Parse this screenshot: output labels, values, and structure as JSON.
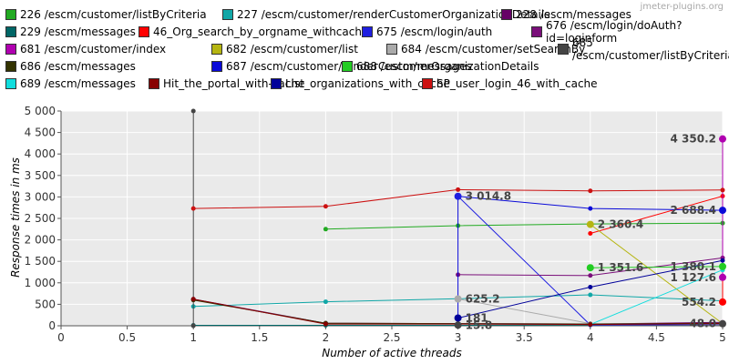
{
  "watermark": "jmeter-plugins.org",
  "chart_data": {
    "type": "line",
    "title": "",
    "xlabel": "Number of active threads",
    "ylabel": "Response times in ms",
    "xlim": [
      0,
      5
    ],
    "ylim": [
      0,
      5000
    ],
    "x_ticks": [
      "0",
      "0.5",
      "1",
      "1.5",
      "2",
      "2.5",
      "3",
      "3.5",
      "4",
      "4.5",
      "5"
    ],
    "y_ticks": [
      "0",
      "500",
      "1 000",
      "1 500",
      "2 000",
      "2 500",
      "3 000",
      "3 500",
      "4 000",
      "4 500",
      "5 000"
    ],
    "grid": true,
    "legend_position": "top",
    "series": [
      {
        "name": "226 /escm/customer/listByCriteria",
        "color": "#22aa22",
        "points": [
          [
            2,
            2250
          ],
          [
            3,
            2330
          ],
          [
            4,
            2370
          ],
          [
            5,
            2390
          ],
          [
            5,
            1300
          ]
        ]
      },
      {
        "name": "227 /escm/customer/renderCustomerOrganizationDetails",
        "color": "#11a7a7",
        "points": [
          [
            1,
            450
          ],
          [
            2,
            560
          ],
          [
            3,
            630
          ],
          [
            4,
            720
          ],
          [
            5,
            580
          ]
        ]
      },
      {
        "name": "228 /escm/messages",
        "color": "#660066",
        "points": [
          [
            1,
            620
          ],
          [
            2,
            60
          ],
          [
            3,
            50
          ],
          [
            4,
            40
          ],
          [
            5,
            80
          ]
        ]
      },
      {
        "name": "229 /escm/messages",
        "color": "#006666",
        "points": [
          [
            1,
            10
          ],
          [
            2,
            10
          ],
          [
            3,
            10
          ],
          [
            4,
            20
          ],
          [
            5,
            30
          ]
        ]
      },
      {
        "name": "46_Org_search_by_orgname_withcache",
        "color": "#ff0000",
        "points": [
          [
            4,
            2150
          ],
          [
            5,
            3020
          ],
          [
            5,
            554.2
          ]
        ]
      },
      {
        "name": "675 /escm/login/auth",
        "color": "#1f1fe0",
        "points": [
          [
            3,
            3014.8
          ],
          [
            4,
            20
          ],
          [
            5,
            30
          ]
        ]
      },
      {
        "name": "676 /escm/login/doAuth?id=loginform",
        "color": "#7a0f7a",
        "points": [
          [
            3,
            1190
          ],
          [
            4,
            1170
          ],
          [
            5,
            1580
          ]
        ]
      },
      {
        "name": "681 /escm/customer/index",
        "color": "#b000b0",
        "points": [
          [
            5,
            4350.2
          ],
          [
            5,
            1127.6
          ]
        ]
      },
      {
        "name": "682 /escm/customer/list",
        "color": "#b5b511",
        "points": [
          [
            4,
            2360.4
          ],
          [
            5,
            50
          ]
        ]
      },
      {
        "name": "684 /escm/customer/setSearchBy",
        "color": "#aaaaaa",
        "points": [
          [
            3,
            625.2
          ],
          [
            4,
            50
          ],
          [
            5,
            40
          ]
        ]
      },
      {
        "name": "685 /escm/customer/listByCriteria",
        "color": "#444444",
        "points": [
          [
            1,
            0
          ],
          [
            1,
            5000
          ]
        ]
      },
      {
        "name": "686 /escm/messages",
        "color": "#333300",
        "points": [
          [
            1,
            600
          ],
          [
            2,
            60
          ],
          [
            3,
            50
          ],
          [
            4,
            40
          ],
          [
            5,
            60
          ]
        ]
      },
      {
        "name": "687 /escm/customer/renderCustomerOrganizationDetails",
        "color": "#0a0ad8",
        "points": [
          [
            3,
            0
          ],
          [
            3,
            3014.8
          ],
          [
            4,
            2730
          ],
          [
            5,
            2688.4
          ]
        ]
      },
      {
        "name": "688 /escm/messages",
        "color": "#22cc22",
        "points": [
          [
            4,
            1351.6
          ],
          [
            5,
            1380
          ]
        ]
      },
      {
        "name": "689 /escm/messages",
        "color": "#11dddd",
        "points": [
          [
            4,
            30
          ],
          [
            5,
            1300
          ]
        ]
      },
      {
        "name": "Hit_the_portal_with-cache",
        "color": "#880000",
        "points": [
          [
            1,
            620
          ],
          [
            2,
            40
          ],
          [
            3,
            40
          ],
          [
            4,
            30
          ],
          [
            5,
            50
          ]
        ]
      },
      {
        "name": "List_organizations_with_cache",
        "color": "#000099",
        "points": [
          [
            3,
            181
          ],
          [
            4,
            900
          ],
          [
            5,
            1520
          ]
        ]
      },
      {
        "name": "SP_user_login_46_with_cache",
        "color": "#cc1111",
        "points": [
          [
            1,
            2730
          ],
          [
            2,
            2780
          ],
          [
            3,
            3170
          ],
          [
            4,
            3140
          ],
          [
            5,
            3160
          ]
        ]
      }
    ],
    "data_labels": [
      {
        "text": "4 350.2",
        "x": 5,
        "y": 4350.2,
        "color": "#b000b0",
        "side": "left"
      },
      {
        "text": "3 014.8",
        "x": 3,
        "y": 3014.8,
        "color": "#1f1fe0",
        "side": "right"
      },
      {
        "text": "2 688.4",
        "x": 5,
        "y": 2688.4,
        "color": "#0a0ad8",
        "side": "left"
      },
      {
        "text": "2 360.4",
        "x": 4,
        "y": 2360.4,
        "color": "#b5b511",
        "side": "right"
      },
      {
        "text": "1 351.6",
        "x": 4,
        "y": 1351.6,
        "color": "#22cc22",
        "side": "right"
      },
      {
        "text": "1 380.1",
        "x": 5,
        "y": 1380.1,
        "color": "#22cc22",
        "side": "left"
      },
      {
        "text": "1 127.6",
        "x": 5,
        "y": 1127.6,
        "color": "#b000b0",
        "side": "left"
      },
      {
        "text": "625.2",
        "x": 3,
        "y": 625.2,
        "color": "#aaaaaa",
        "side": "right"
      },
      {
        "text": "554.2",
        "x": 5,
        "y": 554.2,
        "color": "#ff0000",
        "side": "left"
      },
      {
        "text": "181",
        "x": 3,
        "y": 181,
        "color": "#000099",
        "side": "right"
      },
      {
        "text": "15.8",
        "x": 3,
        "y": 15.8,
        "color": "#444444",
        "side": "right"
      },
      {
        "text": "48.0",
        "x": 5,
        "y": 48,
        "color": "#444444",
        "side": "left"
      }
    ]
  }
}
